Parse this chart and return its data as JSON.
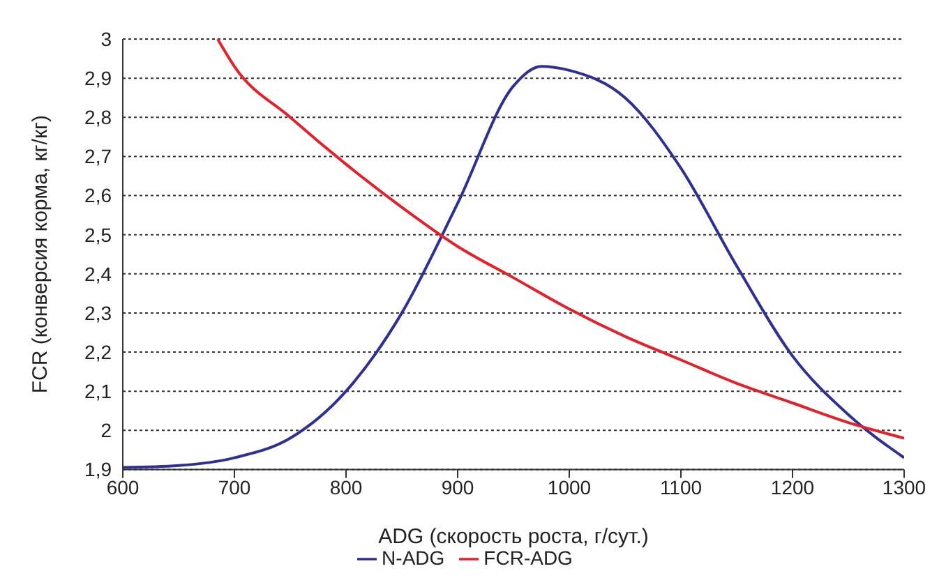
{
  "chart_data": {
    "type": "line",
    "xlabel": "ADG (скорость роста, г/сут.)",
    "ylabel": "FCR (конверсия корма, кг/кг)",
    "series": [
      {
        "name": "N-ADG",
        "color": "#2e3192",
        "x": [
          600,
          650,
          700,
          750,
          800,
          850,
          900,
          950,
          975,
          1000,
          1050,
          1100,
          1150,
          1200,
          1250,
          1300
        ],
        "values": [
          1.905,
          1.91,
          1.93,
          1.98,
          2.1,
          2.3,
          2.58,
          2.88,
          2.93,
          2.92,
          2.85,
          2.67,
          2.42,
          2.19,
          2.04,
          1.93
        ]
      },
      {
        "name": "FCR-ADG",
        "color": "#e4202a",
        "x": [
          685,
          700,
          750,
          800,
          850,
          900,
          950,
          1000,
          1050,
          1100,
          1150,
          1200,
          1250,
          1300
        ],
        "values": [
          3.0,
          2.93,
          2.8,
          2.68,
          2.57,
          2.47,
          2.39,
          2.31,
          2.24,
          2.18,
          2.12,
          2.07,
          2.02,
          1.98
        ]
      }
    ],
    "xlim": [
      600,
      1300
    ],
    "xticks": [
      600,
      700,
      800,
      900,
      1000,
      1100,
      1200,
      1300
    ],
    "ylim": [
      1.9,
      3
    ],
    "yticks": [
      {
        "value": 1.9,
        "label": "1,9"
      },
      {
        "value": 2,
        "label": "2"
      },
      {
        "value": 2.1,
        "label": "2,1"
      },
      {
        "value": 2.2,
        "label": "2,2"
      },
      {
        "value": 2.3,
        "label": "2,3"
      },
      {
        "value": 2.4,
        "label": "2,4"
      },
      {
        "value": 2.5,
        "label": "2,5"
      },
      {
        "value": 2.6,
        "label": "2,6"
      },
      {
        "value": 2.7,
        "label": "2,7"
      },
      {
        "value": 2.8,
        "label": "2,8"
      },
      {
        "value": 2.9,
        "label": "2,9"
      },
      {
        "value": 3,
        "label": "3"
      }
    ],
    "grid": "y",
    "legend": "bottom",
    "marker": "none",
    "line_style": "solid"
  }
}
